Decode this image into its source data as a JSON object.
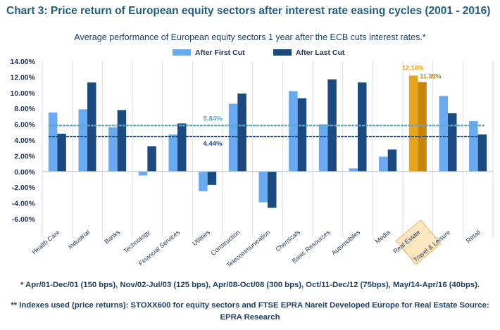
{
  "title": "Chart 3: Price return of European equity sectors after interest rate easing cycles (2001 - 2016)",
  "subtitle": "Average performance of European equity sectors 1 year after the ECB cuts interest rates.*",
  "colors": {
    "first": "#6aaaf0",
    "last": "#1b4b7e",
    "highlight_first": "#e8a41a",
    "highlight_last": "#c8850c",
    "highlight_box": "#fbe6c0",
    "ref_first": "#5fa8cc",
    "ref_last": "#1b4b7e"
  },
  "chart_data": {
    "type": "bar",
    "categories": [
      "Health Care",
      "Industrial",
      "Banks",
      "Technology",
      "Financial Services",
      "Utilities",
      "Construction",
      "Telecommunication",
      "Chemicals",
      "Basic Resources",
      "Automobiles",
      "Media",
      "Real Estate",
      "Travel & Leisure",
      "Retail"
    ],
    "series": [
      {
        "name": "After First Cut",
        "values": [
          7.5,
          7.9,
          5.6,
          -0.5,
          4.7,
          -2.5,
          8.6,
          -3.9,
          10.2,
          6.0,
          0.4,
          1.9,
          12.18,
          9.6,
          6.4
        ]
      },
      {
        "name": "After Last Cut",
        "values": [
          4.8,
          11.3,
          7.8,
          3.2,
          6.1,
          -1.7,
          9.9,
          -4.6,
          9.3,
          11.7,
          11.3,
          2.8,
          11.35,
          7.4,
          4.7
        ]
      }
    ],
    "ylim": [
      -6,
      14
    ],
    "yticks": [
      "-6.00%",
      "-4.00%",
      "-2.00%",
      "0.00%",
      "2.00%",
      "4.00%",
      "6.00%",
      "8.00%",
      "10.00%",
      "12.00%",
      "14.00%"
    ],
    "highlight_category": "Real Estate",
    "data_labels": [
      "12.18%",
      "11.35%"
    ],
    "reference_lines": [
      {
        "value": 5.84,
        "label": "5.84%"
      },
      {
        "value": 4.44,
        "label": "4.44%"
      }
    ],
    "legend_position": "top-center",
    "grid": "vertical"
  },
  "footnotes": [
    "* Apr/01-Dec/01 (150 bps), Nov/02-Jul/03 (125 bps), Apr/08-Oct/08 (300 bps), Oct/11-Dec/12 (75bps), May/14-Apr/16 (40bps).",
    "** Indexes used (price returns): STOXX600 for equity sectors and FTSE EPRA Nareit Developed Europe for Real Estate Source: EPRA Research"
  ]
}
